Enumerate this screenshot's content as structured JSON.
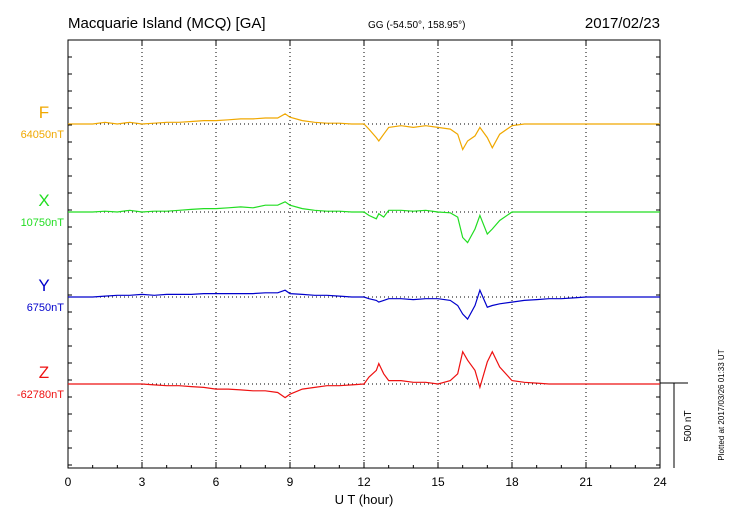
{
  "header": {
    "station": "Macquarie Island (MCQ)  [GA]",
    "coords": "GG (-54.50°, 158.95°)",
    "date": "2017/02/23"
  },
  "footer": {
    "plotted": "Plotted at 2017/03/26 01:33 UT"
  },
  "chart_data": {
    "type": "line",
    "xlabel": "U T (hour)",
    "xlim": [
      0,
      24
    ],
    "xticks": [
      0,
      3,
      6,
      9,
      12,
      15,
      18,
      21,
      24
    ],
    "scale_bar_label": "500 nT",
    "scale_bar_nT": 500,
    "grid": true,
    "x": [
      0,
      0.5,
      1,
      1.5,
      2,
      2.5,
      3,
      3.5,
      4,
      4.5,
      5,
      5.5,
      6,
      6.5,
      7,
      7.5,
      8,
      8.5,
      8.8,
      9,
      9.5,
      10,
      10.5,
      11,
      11.5,
      12,
      12.2,
      12.5,
      12.6,
      12.8,
      13,
      13.5,
      14,
      14.5,
      15,
      15.5,
      15.8,
      16,
      16.2,
      16.5,
      16.7,
      17,
      17.2,
      17.5,
      18,
      18.5,
      19,
      19.5,
      20,
      20.5,
      21,
      21.5,
      22,
      22.5,
      23,
      23.5,
      24
    ],
    "series": [
      {
        "name": "F",
        "baseline_label": "64050nT",
        "color": "#f0a800",
        "values": [
          0,
          0,
          0,
          10,
          0,
          10,
          0,
          5,
          10,
          10,
          15,
          20,
          20,
          25,
          30,
          30,
          35,
          35,
          60,
          40,
          20,
          10,
          5,
          5,
          0,
          0,
          -30,
          -80,
          -100,
          -60,
          -20,
          -10,
          -20,
          -10,
          -20,
          -30,
          -60,
          -150,
          -100,
          -70,
          -20,
          -80,
          -140,
          -60,
          -10,
          0,
          0,
          0,
          0,
          0,
          0,
          0,
          0,
          0,
          0,
          0,
          0
        ]
      },
      {
        "name": "X",
        "baseline_label": "10750nT",
        "color": "#22dd22",
        "values": [
          0,
          0,
          0,
          5,
          0,
          10,
          0,
          5,
          5,
          10,
          15,
          20,
          20,
          25,
          30,
          25,
          40,
          40,
          60,
          40,
          20,
          10,
          5,
          5,
          0,
          0,
          -20,
          -40,
          -10,
          -30,
          10,
          10,
          5,
          10,
          0,
          -5,
          -30,
          -150,
          -180,
          -100,
          -20,
          -130,
          -100,
          -50,
          0,
          0,
          0,
          0,
          0,
          0,
          0,
          0,
          0,
          0,
          0,
          0,
          0
        ]
      },
      {
        "name": "Y",
        "baseline_label": "6750nT",
        "color": "#0000cc",
        "values": [
          0,
          0,
          0,
          5,
          10,
          10,
          15,
          10,
          15,
          15,
          15,
          20,
          20,
          20,
          20,
          20,
          25,
          25,
          40,
          20,
          15,
          10,
          10,
          5,
          0,
          0,
          -10,
          -20,
          -30,
          -20,
          -10,
          -10,
          -15,
          -10,
          -10,
          -20,
          -50,
          -100,
          -130,
          -50,
          40,
          -60,
          -50,
          -40,
          -30,
          -20,
          -15,
          -10,
          -10,
          -5,
          0,
          0,
          0,
          0,
          0,
          0,
          0
        ]
      },
      {
        "name": "Z",
        "baseline_label": "-62780nT",
        "color": "#ee1111",
        "values": [
          0,
          0,
          0,
          0,
          0,
          0,
          0,
          -5,
          -10,
          -10,
          -15,
          -20,
          -30,
          -30,
          -35,
          -40,
          -40,
          -50,
          -80,
          -60,
          -30,
          -20,
          -10,
          -10,
          -5,
          0,
          40,
          80,
          120,
          60,
          20,
          20,
          10,
          10,
          0,
          20,
          60,
          190,
          140,
          80,
          -20,
          130,
          190,
          100,
          20,
          10,
          5,
          0,
          0,
          0,
          0,
          0,
          0,
          0,
          0,
          0,
          0
        ]
      }
    ]
  }
}
